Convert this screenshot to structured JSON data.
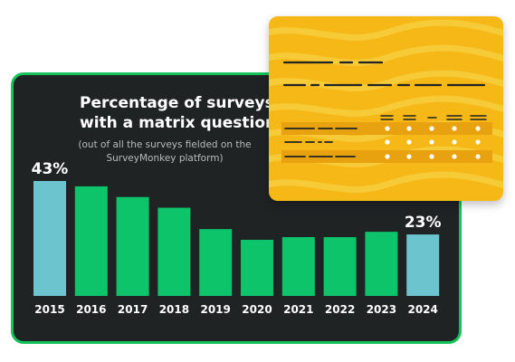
{
  "colors": {
    "panel_bg": "#1f2324",
    "panel_border": "#16c35a",
    "bar_highlight": "#6cc5ce",
    "bar_default": "#0ec46a",
    "card_bg": "#f5b817",
    "card_dash": "#1f2324"
  },
  "chart_data": {
    "type": "bar",
    "title": "Percentage of surveys with a matrix question",
    "title_lines": [
      "Percentage of surveys",
      "with a matrix question"
    ],
    "subtitle": "(out of all the surveys fielded on the SurveyMonkey platform)",
    "subtitle_lines": [
      "(out of all the surveys fielded on the",
      "SurveyMonkey platform)"
    ],
    "categories": [
      "2015",
      "2016",
      "2017",
      "2018",
      "2019",
      "2020",
      "2021",
      "2022",
      "2023",
      "2024"
    ],
    "values": [
      43,
      41,
      37,
      33,
      25,
      21,
      22,
      22,
      24,
      23
    ],
    "highlighted": [
      true,
      false,
      false,
      false,
      false,
      false,
      false,
      false,
      false,
      true
    ],
    "data_labels": [
      "43%",
      "",
      "",
      "",
      "",
      "",
      "",
      "",
      "",
      "23%"
    ],
    "xlabel": "",
    "ylabel": "",
    "ylim": [
      0,
      43
    ],
    "grid": false,
    "legend": "none"
  },
  "decorative_card": {
    "icon": "matrix-question-form-icon"
  }
}
